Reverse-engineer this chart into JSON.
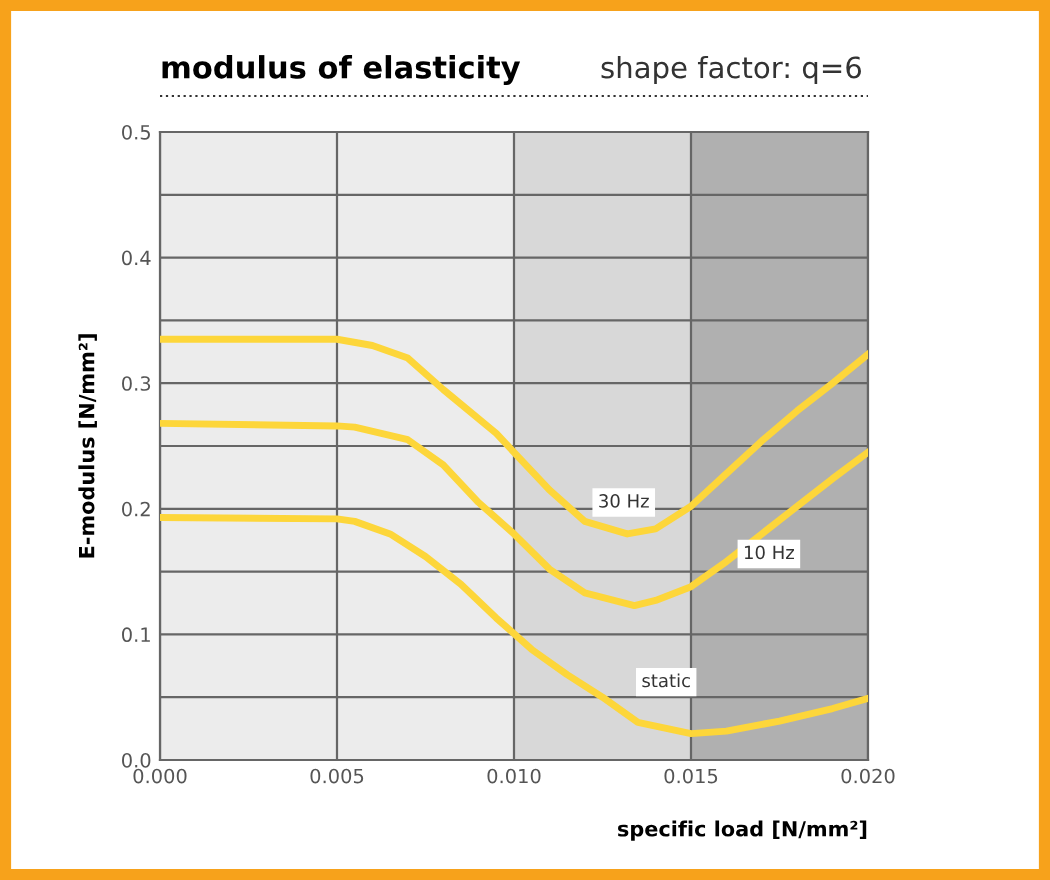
{
  "chart_data": {
    "type": "line",
    "title": "modulus of elasticity",
    "subtitle": "shape factor: q=6",
    "xlabel": "specific load [N/mm²]",
    "ylabel": "E-modulus [N/mm²]",
    "xlim": [
      0,
      0.02
    ],
    "ylim": [
      0,
      0.5
    ],
    "xticks": [
      {
        "value": 0,
        "label": "0.000"
      },
      {
        "value": 0.005,
        "label": "0.005"
      },
      {
        "value": 0.01,
        "label": "0.010"
      },
      {
        "value": 0.015,
        "label": "0.015"
      },
      {
        "value": 0.02,
        "label": "0.020"
      }
    ],
    "yticks": [
      {
        "value": 0,
        "label": "0.0"
      },
      {
        "value": 0.05,
        "label": null
      },
      0.1,
      {
        "value": 0.15,
        "label": null
      },
      0.2,
      {
        "value": 0.25,
        "label": null
      },
      0.3,
      {
        "value": 0.35,
        "label": null
      },
      0.4,
      {
        "value": 0.45,
        "label": null
      },
      0.5
    ],
    "grid": true,
    "line_style": "solid",
    "marker": "none",
    "bands": [
      {
        "axis": "x",
        "from": 0,
        "to": 0.01,
        "color": "#ececec"
      },
      {
        "axis": "x",
        "from": 0.01,
        "to": 0.015,
        "color": "#d8d8d8"
      },
      {
        "axis": "x",
        "from": 0.015,
        "to": 0.02,
        "color": "#b0b0b0"
      }
    ],
    "series": [
      {
        "name": "30 Hz",
        "color": "#fdd63a",
        "x": [
          0,
          0.005,
          0.006,
          0.007,
          0.008,
          0.0095,
          0.01,
          0.011,
          0.012,
          0.0132,
          0.014,
          0.015,
          0.016,
          0.017,
          0.018,
          0.019,
          0.02
        ],
        "values": [
          0.335,
          0.335,
          0.33,
          0.32,
          0.295,
          0.26,
          0.245,
          0.215,
          0.19,
          0.18,
          0.184,
          0.202,
          0.228,
          0.254,
          0.278,
          0.3,
          0.323
        ]
      },
      {
        "name": "10 Hz",
        "color": "#fdd63a",
        "x": [
          0,
          0.005,
          0.0055,
          0.007,
          0.008,
          0.009,
          0.01,
          0.011,
          0.012,
          0.0134,
          0.014,
          0.015,
          0.016,
          0.017,
          0.018,
          0.019,
          0.02
        ],
        "values": [
          0.268,
          0.266,
          0.265,
          0.255,
          0.235,
          0.205,
          0.18,
          0.152,
          0.133,
          0.123,
          0.127,
          0.138,
          0.158,
          0.18,
          0.202,
          0.224,
          0.245
        ]
      },
      {
        "name": "static",
        "color": "#fdd63a",
        "x": [
          0,
          0.005,
          0.0055,
          0.0065,
          0.0075,
          0.0085,
          0.0095,
          0.0105,
          0.0115,
          0.0125,
          0.0135,
          0.015,
          0.016,
          0.0175,
          0.019,
          0.02
        ],
        "values": [
          0.193,
          0.192,
          0.19,
          0.18,
          0.162,
          0.14,
          0.113,
          0.088,
          0.068,
          0.05,
          0.03,
          0.021,
          0.023,
          0.031,
          0.041,
          0.049
        ]
      }
    ]
  }
}
